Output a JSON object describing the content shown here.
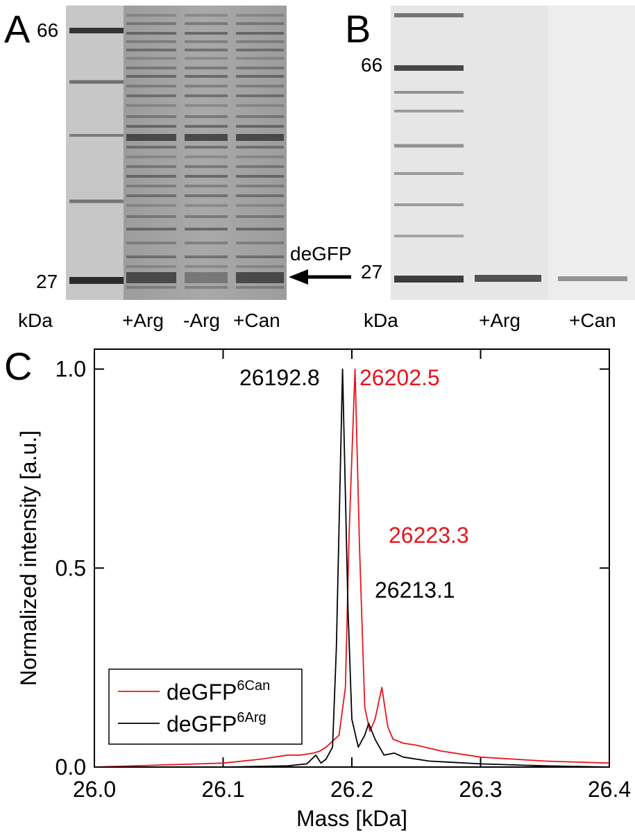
{
  "figure": {
    "panel_a": {
      "letter": "A",
      "markers": {
        "top": "66",
        "bottom": "27"
      },
      "lanes": [
        "kDa",
        "+Arg",
        "-Arg",
        "+Can"
      ],
      "arrow_label": "deGFP"
    },
    "panel_b": {
      "letter": "B",
      "markers": {
        "top": "66",
        "bottom": "27"
      },
      "lanes": [
        "kDa",
        "+Arg",
        "+Can"
      ]
    },
    "panel_c": {
      "letter": "C"
    }
  },
  "chart_data": {
    "type": "line",
    "xlabel": "Mass [kDa]",
    "ylabel": "Normalized intensity [a.u.]",
    "xlim": [
      26.0,
      26.4
    ],
    "ylim": [
      0.0,
      1.05
    ],
    "x_ticks": [
      "26.0",
      "26.1",
      "26.2",
      "26.3",
      "26.4"
    ],
    "y_ticks": [
      "0.0",
      "0.5",
      "1.0"
    ],
    "grid": false,
    "legend_position": "bottom-left",
    "legend": [
      {
        "base": "deGFP",
        "sup": "6Can",
        "color": "#e8141b"
      },
      {
        "base": "deGFP",
        "sup": "6Arg",
        "color": "#000000"
      }
    ],
    "series": [
      {
        "color": "#e8141b",
        "x": [
          26.0,
          26.05,
          26.1,
          26.13,
          26.15,
          26.16,
          26.17,
          26.175,
          26.18,
          26.185,
          26.19,
          26.195,
          26.198,
          26.2025,
          26.206,
          26.21,
          26.214,
          26.218,
          26.2233,
          26.228,
          26.232,
          26.24,
          26.25,
          26.27,
          26.3,
          26.35,
          26.4
        ],
        "y": [
          0.0,
          0.005,
          0.01,
          0.02,
          0.03,
          0.03,
          0.035,
          0.04,
          0.05,
          0.065,
          0.08,
          0.2,
          0.6,
          1.0,
          0.55,
          0.15,
          0.09,
          0.12,
          0.2,
          0.1,
          0.07,
          0.06,
          0.055,
          0.04,
          0.025,
          0.015,
          0.01
        ]
      },
      {
        "color": "#000000",
        "x": [
          26.0,
          26.1,
          26.15,
          26.165,
          26.172,
          26.176,
          26.18,
          26.185,
          26.188,
          26.1928,
          26.197,
          26.2,
          26.205,
          26.21,
          26.2131,
          26.218,
          26.225,
          26.233,
          26.24,
          26.26,
          26.3,
          26.35,
          26.4
        ],
        "y": [
          0.0,
          0.0,
          0.003,
          0.008,
          0.03,
          0.01,
          0.02,
          0.05,
          0.3,
          1.0,
          0.4,
          0.12,
          0.05,
          0.08,
          0.11,
          0.07,
          0.03,
          0.035,
          0.025,
          0.015,
          0.008,
          0.003,
          0.0
        ]
      }
    ],
    "annotations": [
      {
        "text": "26192.8",
        "color": "#000000"
      },
      {
        "text": "26202.5",
        "color": "#e8141b"
      },
      {
        "text": "26223.3",
        "color": "#e8141b"
      },
      {
        "text": "26213.1",
        "color": "#000000"
      }
    ]
  }
}
